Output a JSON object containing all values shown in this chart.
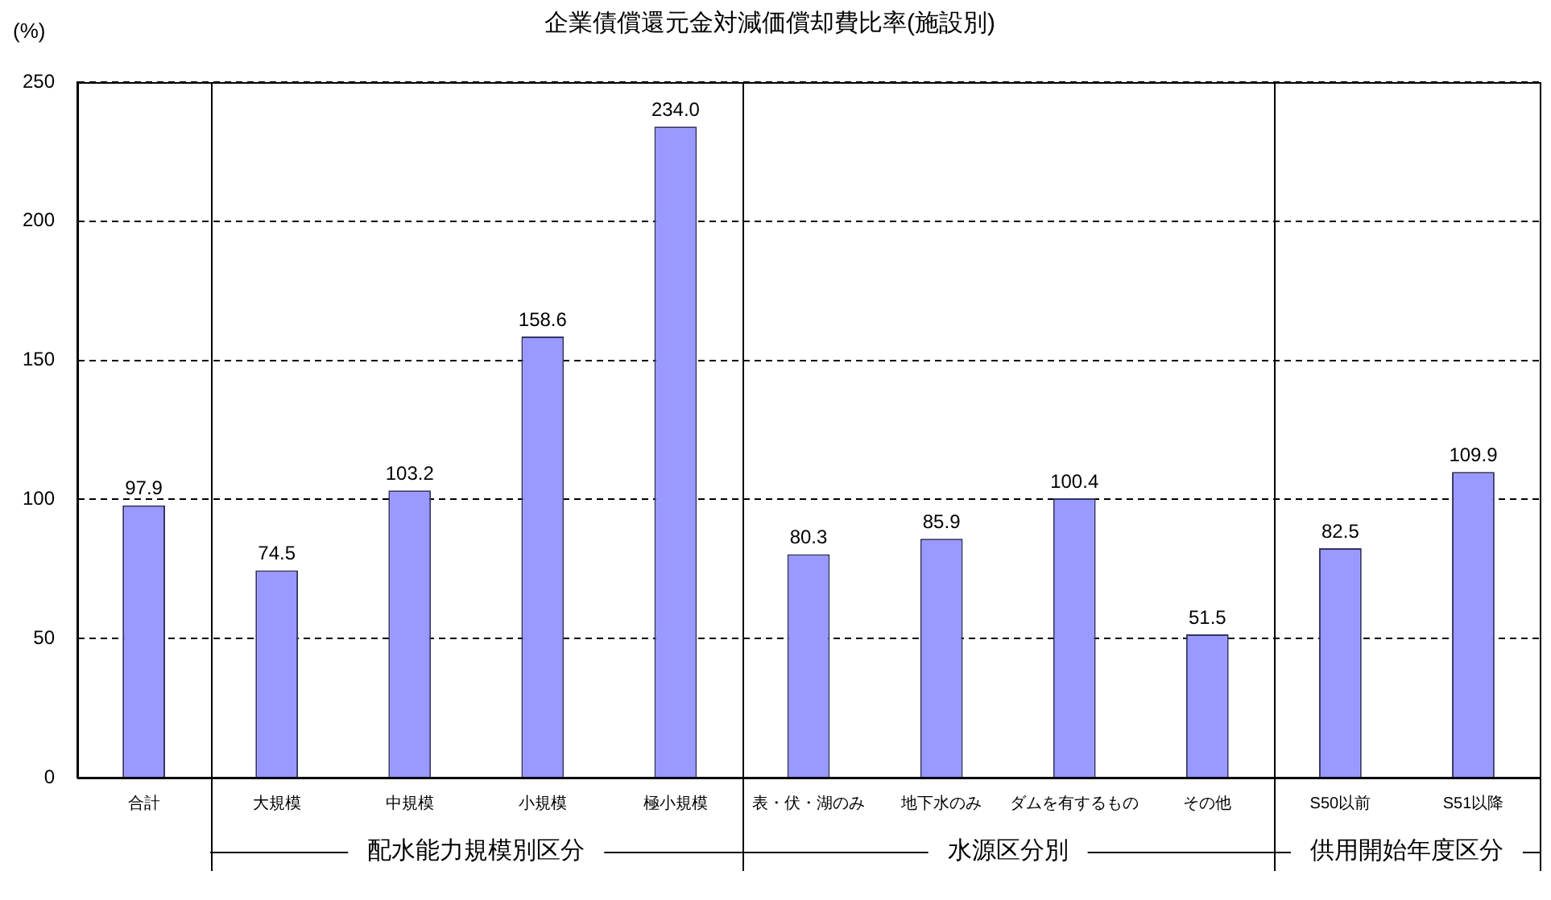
{
  "chart_data": {
    "type": "bar",
    "title": "企業債償還元金対減価償却費比率(施設別)",
    "ylabel": "(%)",
    "categories": [
      "合計",
      "大規模",
      "中規模",
      "小規模",
      "極小規模",
      "表・伏・湖のみ",
      "地下水のみ",
      "ダムを有するもの",
      "その他",
      "S50以前",
      "S51以降"
    ],
    "values": [
      97.9,
      74.5,
      103.2,
      158.6,
      234.0,
      80.3,
      85.9,
      100.4,
      51.5,
      82.5,
      109.9
    ],
    "value_labels": [
      "97.9",
      "74.5",
      "103.2",
      "158.6",
      "234.0",
      "80.3",
      "85.9",
      "100.4",
      "51.5",
      "82.5",
      "109.9"
    ],
    "color": "#9999ff",
    "ylim": [
      0,
      250
    ],
    "yticks": [
      0,
      50,
      100,
      150,
      200,
      250
    ],
    "grid": "y",
    "legend": false,
    "annotations": [
      "配水能力規模別区分",
      "水源区分別",
      "供用開始年度区分"
    ]
  }
}
